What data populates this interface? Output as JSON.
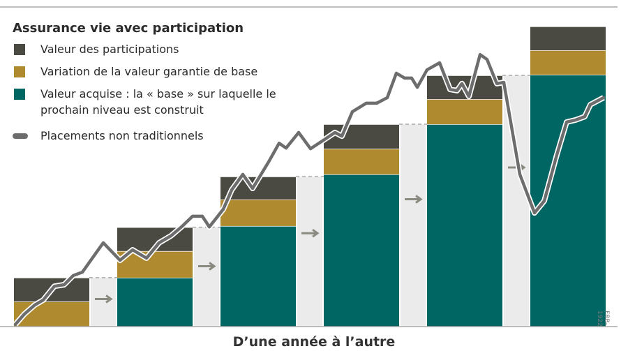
{
  "chart_data": {
    "type": "bar",
    "title": "Assurance vie avec participation",
    "x_label": "D’une année à l’autre",
    "source": "FRB-1922",
    "categories": [
      null,
      null,
      null,
      null,
      null,
      null
    ],
    "stacked": true,
    "ylim": [
      0,
      100
    ],
    "xlim": [
      0,
      900
    ],
    "series": [
      {
        "name": "Valeur acquise : la « base » sur laquelle le prochain niveau est construit",
        "color": "#006663",
        "values": [
          0,
          16,
          32.9,
          49.8,
          66.2,
          82.4
        ]
      },
      {
        "name": "Variation de la valeur garantie de base",
        "color": "#b08a2e",
        "values": [
          8.2,
          8.7,
          8.7,
          8.4,
          8.2,
          8
        ]
      },
      {
        "name": "Valeur des participations",
        "color": "#4a4a42",
        "values": [
          7.8,
          7.8,
          7.5,
          8,
          7.8,
          7.8
        ]
      }
    ],
    "line": {
      "name": "Placements non traditionnels",
      "color": "#6d6d6d",
      "x": [
        22,
        35,
        50,
        62,
        78,
        92,
        105,
        118,
        148,
        172,
        190,
        210,
        228,
        245,
        260,
        276,
        290,
        300,
        320,
        332,
        348,
        362,
        385,
        400,
        410,
        428,
        445,
        465,
        480,
        490,
        505,
        525,
        540,
        555,
        568,
        580,
        590,
        598,
        612,
        630,
        645,
        655,
        662,
        672,
        688,
        698,
        712,
        722,
        745,
        766,
        780,
        798,
        812,
        825,
        838,
        846,
        865
      ],
      "values": [
        0.7,
        4.1,
        7.1,
        8.7,
        13.2,
        13.7,
        16.7,
        17.8,
        27.4,
        21.7,
        25.1,
        22.4,
        27.4,
        29.7,
        32.6,
        36.1,
        36.1,
        32.6,
        38.4,
        44.7,
        49.8,
        45.2,
        53.9,
        60.0,
        58.4,
        63.5,
        58.2,
        61.2,
        63.5,
        62.3,
        70.3,
        73.1,
        73.1,
        74.9,
        82.9,
        81.3,
        81.3,
        78.3,
        84.0,
        86.3,
        77.6,
        77.2,
        79.5,
        75.3,
        89.0,
        87.4,
        79.5,
        79.9,
        49.8,
        37.2,
        41.1,
        56.2,
        66.9,
        67.6,
        68.7,
        72.6,
        74.9
      ]
    }
  }
}
